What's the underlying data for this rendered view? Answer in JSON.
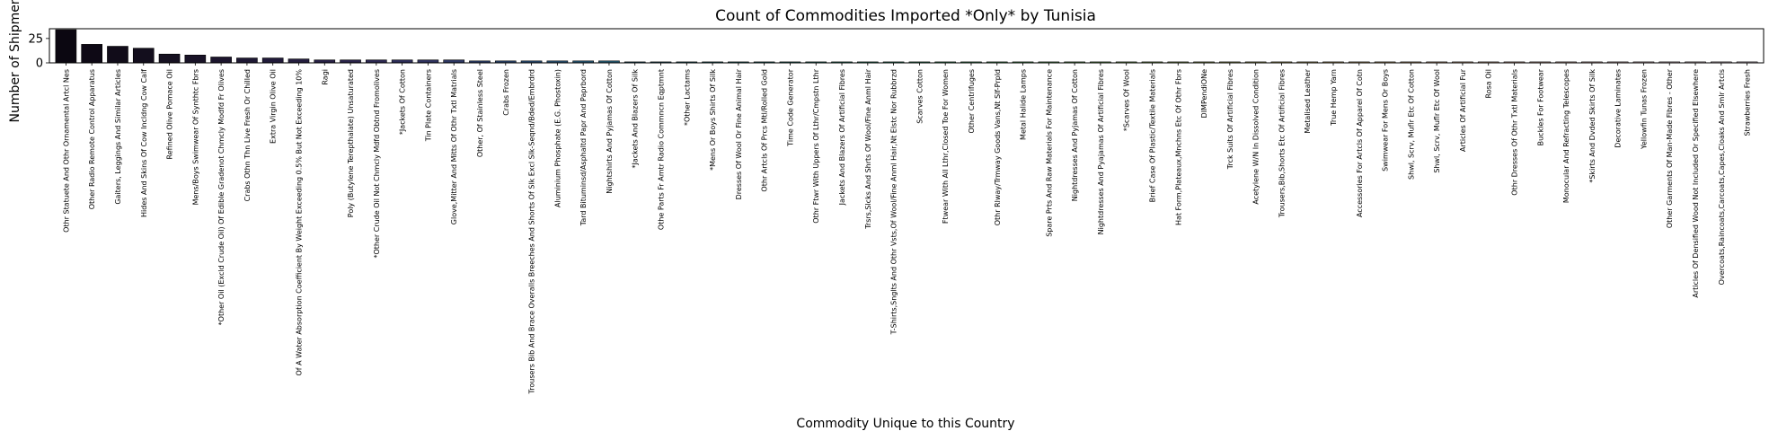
{
  "chart_data": {
    "type": "bar",
    "title": "Count of Commodities Imported *Only* by Tunisia",
    "xlabel": "Commodity Unique to this Country",
    "ylabel": "Number of Shipments",
    "ylim": [
      0,
      35
    ],
    "yticks": [
      "0",
      "25"
    ],
    "grid": false,
    "categories": [
      "Othr Statuete And Othr Ornamental Artcl Nes",
      "Other Radio Remote Control Apparatus",
      "Gaiters, Leggings And Similar Articles",
      "Hides And Skins Of Cow Incldng Cow Calf",
      "Refined Olive Pomace Oil",
      "Mens/Boys Swimwear Of Synthtc Fbrs",
      "*Other Oil (Excld Crude Oil) Of Edible Gradenot Chmcly Modfd Fr Olives",
      "Crabs Othn Thn Live Fresh Or Chilled",
      "Extra Virgin Olive Oil",
      "Of A Water Absorption Coefficient By Weight Exceeding 0.5% But Not Exceeding 10%",
      "Ragi",
      "Poly (Butylene Terepthalate) Unsaturated",
      "*Other Crude Oil Not Chmcly Mdfd Obtnd Fromolives",
      "*Jackets Of Cotton",
      "Tin Plate Containers",
      "Glove,Mitter And Mitts Of Othr Txtl Matrials",
      "Other, Of Stainless Steel",
      "Crabs Frozen",
      "Trousers Bib And Brace Overalls Breeches And Shorts Of Slk Excl Slk-Seqnd/Bded/Embrdrd",
      "Aluminium Phosphate (E.G. Phostoxin)",
      "Tard Bituminsd/Asphaltd Papr And Paprbord",
      "Nightshirts And Pyjamas Of Cotton",
      "*Jackets And Blazers Of Silk",
      "Othe Parts Fr Amtr Radio Commncn Eqptmnt",
      "*Other Lactams",
      "*Mens Or Boys Shirts Of Silk",
      "Dresses Of Wool Or Fine Animal Hair",
      "Othr Artcls Of Prcs Mtl/Rolled Gold",
      "Time Code Generator",
      "Othr Ftwr With Uppers Of Lthr/Cmpstn Lthr",
      "Jackets And Blazers Of Artificial Fibres",
      "Trsrs,Slcks And Shrts Of Wool/Fine Anml Hair",
      "T-Shirts,Snglts And Othr Vsts,Of Wool/Fine Anml Hair,Nt Elstc Nor Rubbrzd",
      "Scarves Cotton",
      "Ftwear With All Lthr,Closed Toe For Women",
      "Other Centrifuges",
      "Othr Rlway/Trmway Goods Vans,Nt Slf-Prpld",
      "Metal Halide Lamps",
      "Spare Prts And Raw Materials For Maintenance",
      "Nightdresses And Pyjamas Of Cotton",
      "Nightdresses And Pyajamas Of Artificial Fibres",
      "*Scarves Of Wool",
      "Brief Case Of Plastic/Textile Materials",
      "Hat Form,Plateaux,Mnchns Etc Of Othr Fbrs",
      "DIMPendiONe",
      "Trck Suits Of Artificial Fibres",
      "Acetylene W/N In Dissolved Condition",
      "Trousers,Bib,Shorts Etc Of Artificial Fibres",
      "Metalised Leather",
      "True Hemp Yarn",
      "Accessories For Artcls Of Apparel Of Cotn",
      "Swimwear For Mens Or Boys",
      "Shwl, Scrv, Muflr Etc Of Cotton",
      "Shwl, Scrv, Muflr Etc Of Wool",
      "Articles Of Artificial Fur",
      "Rosa Oil",
      "Othr Dresses Of Othr Txtl Materials",
      "Buckles For Footwear",
      "Monocular And Refracting Telescopes",
      "*Skirts And Dvded Skirts Of Silk",
      "Decorative Laminates",
      "Yellowfin Tunas Frozen",
      "Other Garments Of Man-Made Fibres - Other",
      "Articles Of Densified Wood Not Included Or Specified Elsewhere",
      "Overcoats,Raincoats,Carcoats,Capes,Cloaks And Smlr Artcls",
      "Strawberries Fresh"
    ],
    "values": [
      34,
      19,
      17,
      15,
      9,
      8,
      6,
      5,
      5,
      4,
      3,
      3,
      3,
      3,
      3,
      3,
      2,
      2,
      2,
      2,
      2,
      2,
      1,
      1,
      1,
      1,
      1,
      1,
      1,
      1,
      1,
      1,
      1,
      1,
      1,
      1,
      1,
      1,
      1,
      1,
      1,
      1,
      1,
      1,
      1,
      1,
      1,
      1,
      1,
      1,
      1,
      1,
      1,
      1,
      1,
      1,
      1,
      1,
      1,
      1,
      1,
      1,
      1,
      1,
      1,
      1
    ],
    "palette": [
      "#0b0711",
      "#15101f",
      "#1f1834",
      "#2a2249",
      "#2e3360",
      "#2a4a6e",
      "#276075",
      "#2a767a",
      "#2f8a7a",
      "#3a9e74",
      "#53b06a",
      "#7ab965",
      "#a2bd67",
      "#c6be70",
      "#e0bd84",
      "#ecbf9e",
      "#efc6bb",
      "#efd0d6",
      "#f1ddeb"
    ]
  }
}
